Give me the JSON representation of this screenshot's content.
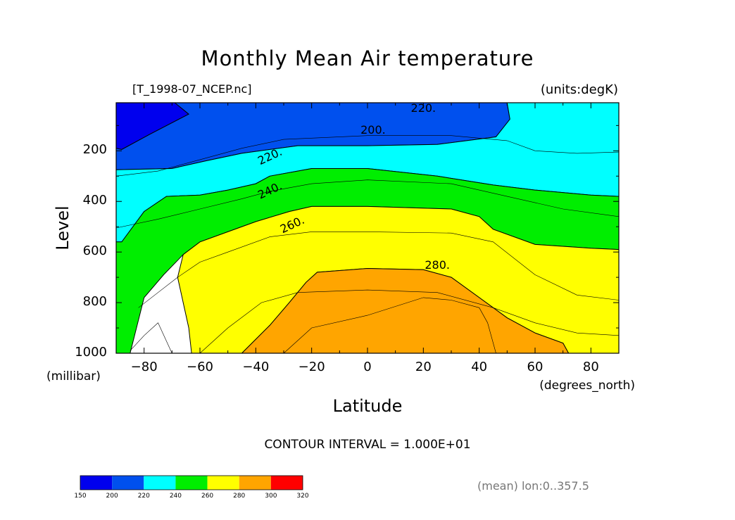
{
  "title": "Monthly Mean Air temperature",
  "file_label": "[T_1998-07_NCEP.nc]",
  "units_label": "(units:degK)",
  "contour_note": "CONTOUR INTERVAL = 1.000E+01",
  "mean_note": "(mean) lon:0..357.5",
  "colorbar": {
    "ticks": [
      "150",
      "200",
      "220",
      "240",
      "260",
      "280",
      "300",
      "320"
    ],
    "colors": [
      "#0000ee",
      "#0050ee",
      "#00ffff",
      "#00ee00",
      "#ffff00",
      "#ffa500",
      "#ff0000"
    ]
  },
  "chart_data": {
    "type": "contour",
    "title": "Monthly Mean Air temperature",
    "xlabel": "Latitude",
    "ylabel": "Level",
    "x_unit": "(degrees_north)",
    "y_unit": "(millibar)",
    "xlim": [
      -90,
      90
    ],
    "ylim": [
      1000,
      10
    ],
    "x_ticks": [
      "−80",
      "−60",
      "−40",
      "−20",
      "0",
      "20",
      "40",
      "60",
      "80"
    ],
    "x_tick_values": [
      -80,
      -60,
      -40,
      -20,
      0,
      20,
      40,
      60,
      80
    ],
    "y_ticks": [
      "200",
      "400",
      "600",
      "800",
      "1000"
    ],
    "y_tick_values": [
      200,
      400,
      600,
      800,
      1000
    ],
    "units": "degK",
    "contour_interval": 10,
    "contour_labels": [
      {
        "text": "220.",
        "lat": 20,
        "level": 30
      },
      {
        "text": "200.",
        "lat": 2,
        "level": 115
      },
      {
        "text": "220.",
        "lat": -35,
        "level": 220
      },
      {
        "text": "240.",
        "lat": -35,
        "level": 355
      },
      {
        "text": "260.",
        "lat": -27,
        "level": 490
      },
      {
        "text": "280.",
        "lat": 25,
        "level": 650
      }
    ],
    "levels": [
      {
        "label": "<200",
        "color": "#0000ee",
        "regions": [
          [
            [
              -90,
              10
            ],
            [
              -69,
              10
            ],
            [
              -64,
              55
            ],
            [
              -78,
              135
            ],
            [
              -88,
              195
            ],
            [
              -90,
              190
            ]
          ],
          [
            [
              -32,
              115
            ],
            [
              -20,
              100
            ],
            [
              0,
              92
            ],
            [
              25,
              92
            ],
            [
              25,
              110
            ],
            [
              10,
              120
            ],
            [
              -20,
              122
            ]
          ]
        ]
      },
      {
        "label": "200-220",
        "color": "#0050ee",
        "regions": [
          [
            [
              -69,
              10
            ],
            [
              -40,
              10
            ],
            [
              0,
              10
            ],
            [
              50,
              10
            ],
            [
              51,
              75
            ],
            [
              46,
              145
            ],
            [
              25,
              175
            ],
            [
              0,
              180
            ],
            [
              -25,
              180
            ],
            [
              -45,
              210
            ],
            [
              -58,
              240
            ],
            [
              -70,
              270
            ],
            [
              -90,
              275
            ],
            [
              -90,
              190
            ],
            [
              -88,
              195
            ],
            [
              -78,
              135
            ],
            [
              -64,
              55
            ]
          ]
        ]
      },
      {
        "label": "220-240",
        "color": "#00ffff",
        "regions": [
          [
            [
              50,
              10
            ],
            [
              90,
              10
            ],
            [
              90,
              380
            ],
            [
              80,
              375
            ],
            [
              60,
              355
            ],
            [
              45,
              335
            ],
            [
              25,
              300
            ],
            [
              0,
              270
            ],
            [
              -20,
              270
            ],
            [
              -25,
              280
            ],
            [
              -35,
              300
            ],
            [
              -40,
              330
            ],
            [
              -50,
              355
            ],
            [
              -60,
              375
            ],
            [
              -72,
              380
            ],
            [
              -80,
              440
            ],
            [
              -88,
              560
            ],
            [
              -90,
              560
            ],
            [
              -90,
              275
            ],
            [
              -70,
              270
            ],
            [
              -58,
              240
            ],
            [
              -45,
              210
            ],
            [
              -25,
              180
            ],
            [
              0,
              180
            ],
            [
              25,
              175
            ],
            [
              46,
              145
            ],
            [
              51,
              75
            ]
          ]
        ]
      },
      {
        "label": "240-260",
        "color": "#00ee00",
        "regions": [
          [
            [
              -90,
              380
            ],
            [
              -90,
              560
            ],
            [
              -88,
              560
            ],
            [
              -80,
              440
            ],
            [
              -72,
              380
            ],
            [
              -60,
              375
            ],
            [
              -50,
              355
            ],
            [
              -40,
              330
            ],
            [
              -35,
              300
            ],
            [
              -25,
              280
            ],
            [
              -20,
              270
            ],
            [
              0,
              270
            ],
            [
              25,
              300
            ],
            [
              45,
              335
            ],
            [
              60,
              355
            ],
            [
              80,
              375
            ],
            [
              90,
              380
            ],
            [
              90,
              590
            ],
            [
              80,
              585
            ],
            [
              60,
              570
            ],
            [
              45,
              510
            ],
            [
              40,
              460
            ],
            [
              30,
              430
            ],
            [
              0,
              420
            ],
            [
              -20,
              420
            ],
            [
              -28,
              440
            ],
            [
              -40,
              480
            ],
            [
              -50,
              520
            ],
            [
              -60,
              560
            ],
            [
              -66,
              610
            ],
            [
              -73,
              690
            ],
            [
              -80,
              780
            ],
            [
              -85,
              1000
            ],
            [
              -90,
              1000
            ]
          ]
        ]
      },
      {
        "label": "260-280",
        "color": "#ffff00",
        "regions": [
          [
            [
              -66,
              610
            ],
            [
              -60,
              560
            ],
            [
              -50,
              520
            ],
            [
              -40,
              480
            ],
            [
              -28,
              440
            ],
            [
              -20,
              420
            ],
            [
              0,
              420
            ],
            [
              30,
              430
            ],
            [
              40,
              460
            ],
            [
              45,
              510
            ],
            [
              60,
              570
            ],
            [
              80,
              585
            ],
            [
              90,
              590
            ],
            [
              90,
              1000
            ],
            [
              72,
              1000
            ],
            [
              70,
              960
            ],
            [
              60,
              920
            ],
            [
              50,
              860
            ],
            [
              40,
              780
            ],
            [
              30,
              700
            ],
            [
              20,
              670
            ],
            [
              0,
              665
            ],
            [
              -18,
              680
            ],
            [
              -22,
              720
            ],
            [
              -28,
              800
            ],
            [
              -35,
              890
            ],
            [
              -45,
              1000
            ],
            [
              -63,
              1000
            ],
            [
              -64,
              900
            ],
            [
              -66,
              800
            ],
            [
              -68,
              700
            ]
          ]
        ]
      },
      {
        "label": "280-300",
        "color": "#ffa500",
        "regions": [
          [
            [
              -45,
              1000
            ],
            [
              -35,
              890
            ],
            [
              -28,
              800
            ],
            [
              -22,
              720
            ],
            [
              -18,
              680
            ],
            [
              0,
              665
            ],
            [
              20,
              670
            ],
            [
              30,
              700
            ],
            [
              40,
              780
            ],
            [
              50,
              860
            ],
            [
              60,
              920
            ],
            [
              70,
              960
            ],
            [
              72,
              1000
            ]
          ]
        ]
      }
    ]
  }
}
